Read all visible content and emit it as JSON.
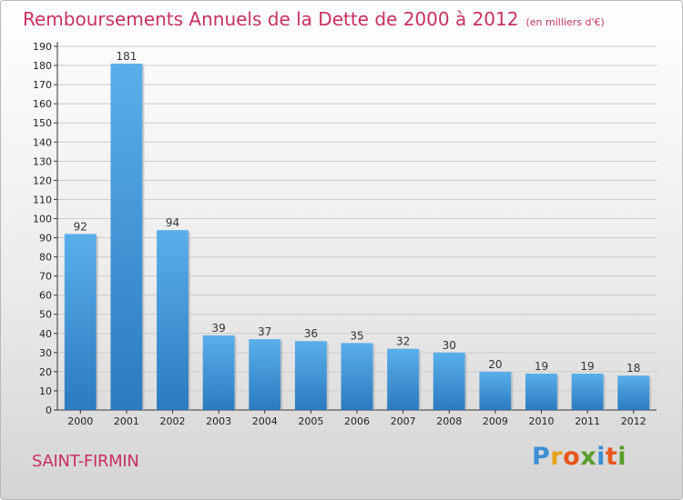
{
  "header": {
    "title": "Remboursements Annuels de la Dette de 2000 à 2012",
    "unit": "(en milliers d'€)"
  },
  "footer": {
    "city": "SAINT-FIRMIN",
    "logo_letters": [
      "P",
      "r",
      "o",
      "x",
      "i",
      "t",
      "i"
    ],
    "logo_colors": [
      "#3d8fd6",
      "#e8a21b",
      "#e8571b",
      "#5a9e2c",
      "#3d8fd6",
      "#e8571b",
      "#5a9e2c"
    ]
  },
  "colors": {
    "bar_top": "#5aafea",
    "bar_bottom": "#2b7ac0",
    "grid": "#cccccc",
    "title": "#c8305e"
  },
  "chart_data": {
    "type": "bar",
    "categories": [
      "2000",
      "2001",
      "2002",
      "2003",
      "2004",
      "2005",
      "2006",
      "2007",
      "2008",
      "2009",
      "2010",
      "2011",
      "2012"
    ],
    "values": [
      92,
      181,
      94,
      39,
      37,
      36,
      35,
      32,
      30,
      20,
      19,
      19,
      18
    ],
    "title": "Remboursements Annuels de la Dette de 2000 à 2012",
    "xlabel": "",
    "ylabel": "",
    "ylim": [
      0,
      190
    ],
    "yticks": [
      0,
      10,
      20,
      30,
      40,
      50,
      60,
      70,
      80,
      90,
      100,
      110,
      120,
      130,
      140,
      150,
      160,
      170,
      180,
      190
    ],
    "grid": true
  }
}
